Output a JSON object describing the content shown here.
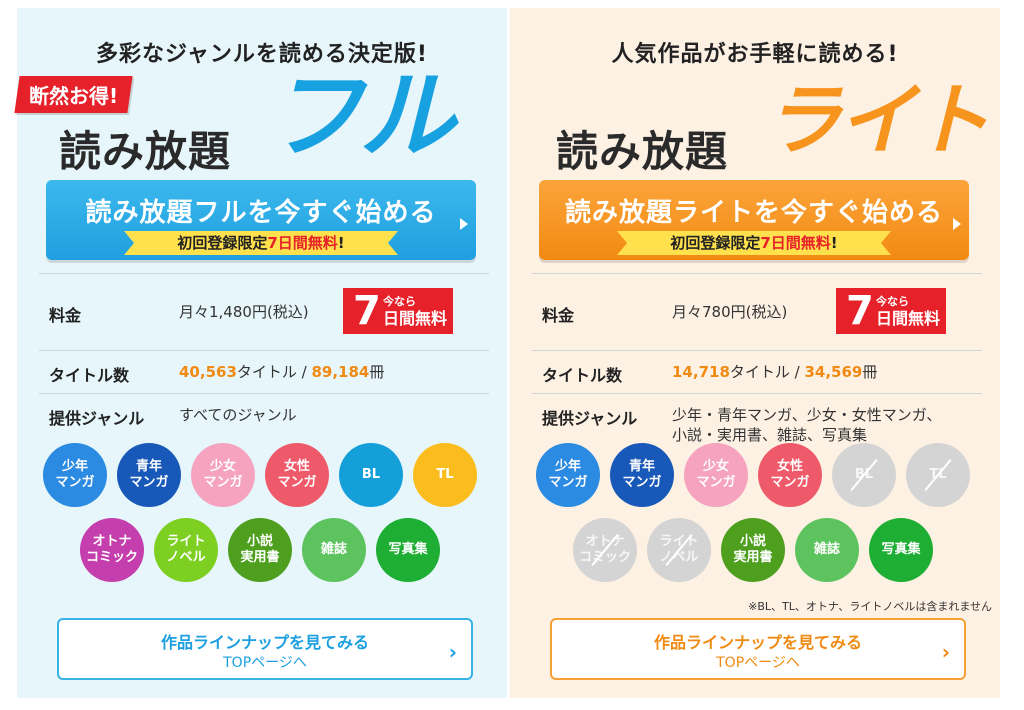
{
  "full": {
    "tagline": "多彩なジャンルを読める決定版!",
    "badge": "断然お得!",
    "logo_main": "読み放題",
    "logo_accent": "フル",
    "cta_title": "読み放題フルを今すぐ始める",
    "cta_ribbon_prefix": "初回登録限定",
    "cta_ribbon_highlight": "7日間無料",
    "cta_ribbon_suffix": "!",
    "price_label": "料金",
    "price_value": "月々1,480円(税込)",
    "free_big": "7",
    "free_small": "今なら",
    "free_mid": "日間無料",
    "titles_label": "タイトル数",
    "titles_count": "40,563",
    "titles_unit": "タイトル / ",
    "books_count": "89,184",
    "books_unit": "冊",
    "genre_label": "提供ジャンル",
    "genre_value": "すべてのジャンル",
    "genres": [
      {
        "label": "少年\nマンガ",
        "color": "#2b8ae2",
        "enabled": true
      },
      {
        "label": "青年\nマンガ",
        "color": "#1758b8",
        "enabled": true
      },
      {
        "label": "少女\nマンガ",
        "color": "#f5a3bf",
        "enabled": true
      },
      {
        "label": "女性\nマンガ",
        "color": "#ef5a6a",
        "enabled": true
      },
      {
        "label": "BL",
        "color": "#159fd9",
        "enabled": true
      },
      {
        "label": "TL",
        "color": "#fbbc1e",
        "enabled": true
      },
      {
        "label": "オトナ\nコミック",
        "color": "#c43fad",
        "enabled": true
      },
      {
        "label": "ライト\nノベル",
        "color": "#7dd021",
        "enabled": true
      },
      {
        "label": "小説\n実用書",
        "color": "#4d9f1d",
        "enabled": true
      },
      {
        "label": "雑誌",
        "color": "#5dc35f",
        "enabled": true
      },
      {
        "label": "写真集",
        "color": "#1fae34",
        "enabled": true
      }
    ],
    "lineup_title": "作品ラインナップを見てみる",
    "lineup_sub": "TOPページへ"
  },
  "lite": {
    "tagline": "人気作品がお手軽に読める!",
    "logo_main": "読み放題",
    "logo_accent": "ライト",
    "cta_title": "読み放題ライトを今すぐ始める",
    "cta_ribbon_prefix": "初回登録限定",
    "cta_ribbon_highlight": "7日間無料",
    "cta_ribbon_suffix": "!",
    "price_label": "料金",
    "price_value": "月々780円(税込)",
    "free_big": "7",
    "free_small": "今なら",
    "free_mid": "日間無料",
    "titles_label": "タイトル数",
    "titles_count": "14,718",
    "titles_unit": "タイトル / ",
    "books_count": "34,569",
    "books_unit": "冊",
    "genre_label": "提供ジャンル",
    "genre_value_line1": "少年・青年マンガ、少女・女性マンガ、",
    "genre_value_line2": "小説・実用書、雑誌、写真集",
    "genres": [
      {
        "label": "少年\nマンガ",
        "color": "#2b8ae2",
        "enabled": true
      },
      {
        "label": "青年\nマンガ",
        "color": "#1758b8",
        "enabled": true
      },
      {
        "label": "少女\nマンガ",
        "color": "#f5a3bf",
        "enabled": true
      },
      {
        "label": "女性\nマンガ",
        "color": "#ef5a6a",
        "enabled": true
      },
      {
        "label": "BL",
        "color": "#d4d4d4",
        "enabled": false
      },
      {
        "label": "TL",
        "color": "#d4d4d4",
        "enabled": false
      },
      {
        "label": "オトナ\nコミック",
        "color": "#d4d4d4",
        "enabled": false
      },
      {
        "label": "ライト\nノベル",
        "color": "#d4d4d4",
        "enabled": false
      },
      {
        "label": "小説\n実用書",
        "color": "#4d9f1d",
        "enabled": true
      },
      {
        "label": "雑誌",
        "color": "#5dc35f",
        "enabled": true
      },
      {
        "label": "写真集",
        "color": "#1fae34",
        "enabled": true
      }
    ],
    "note": "※BL、TL、オトナ、ライトノベルは含まれません",
    "lineup_title": "作品ラインナップを見てみる",
    "lineup_sub": "TOPページへ"
  }
}
